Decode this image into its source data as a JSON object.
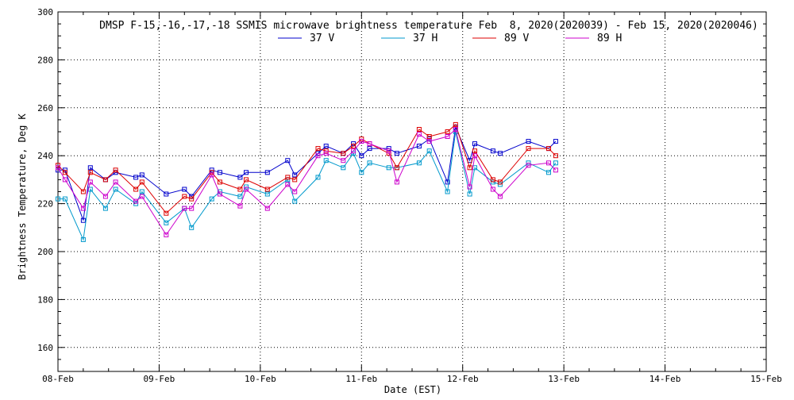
{
  "chart_data": {
    "type": "line",
    "title": "DMSP F-15,-16,-17,-18 SSMIS microwave brightness temperature Feb  8, 2020(2020039) - Feb 15, 2020(2020046)",
    "xlabel": "Date (EST)",
    "ylabel": "Brightness Temperature, Deg K",
    "xlim": [
      0,
      7
    ],
    "ylim": [
      150,
      300
    ],
    "x_ticks": [
      {
        "value": 0,
        "label": "08-Feb"
      },
      {
        "value": 1,
        "label": "09-Feb"
      },
      {
        "value": 2,
        "label": "10-Feb"
      },
      {
        "value": 3,
        "label": "11-Feb"
      },
      {
        "value": 4,
        "label": "12-Feb"
      },
      {
        "value": 5,
        "label": "13-Feb"
      },
      {
        "value": 6,
        "label": "14-Feb"
      },
      {
        "value": 7,
        "label": "15-Feb"
      }
    ],
    "y_ticks": [
      160,
      180,
      200,
      220,
      240,
      260,
      280,
      300
    ],
    "grid": true,
    "legend_position": "top",
    "series": [
      {
        "name": "37 V",
        "color": "#0000cc",
        "points": [
          [
            0.0,
            234
          ],
          [
            0.07,
            234
          ],
          [
            0.25,
            213
          ],
          [
            0.32,
            235
          ],
          [
            0.47,
            230
          ],
          [
            0.57,
            233
          ],
          [
            0.77,
            231
          ],
          [
            0.83,
            232
          ],
          [
            1.07,
            224
          ],
          [
            1.25,
            226
          ],
          [
            1.32,
            223
          ],
          [
            1.52,
            234
          ],
          [
            1.6,
            233
          ],
          [
            1.8,
            231
          ],
          [
            1.86,
            233
          ],
          [
            2.07,
            233
          ],
          [
            2.27,
            238
          ],
          [
            2.34,
            232
          ],
          [
            2.57,
            241
          ],
          [
            2.65,
            244
          ],
          [
            2.82,
            241
          ],
          [
            2.92,
            245
          ],
          [
            3.0,
            240
          ],
          [
            3.08,
            243
          ],
          [
            3.27,
            243
          ],
          [
            3.35,
            241
          ],
          [
            3.57,
            244
          ],
          [
            3.67,
            247
          ],
          [
            3.85,
            229
          ],
          [
            3.93,
            252
          ],
          [
            4.07,
            238
          ],
          [
            4.12,
            245
          ],
          [
            4.3,
            242
          ],
          [
            4.37,
            241
          ],
          [
            4.65,
            246
          ],
          [
            4.85,
            243
          ],
          [
            4.92,
            246
          ]
        ]
      },
      {
        "name": "37 H",
        "color": "#0099cc",
        "points": [
          [
            0.0,
            222
          ],
          [
            0.07,
            222
          ],
          [
            0.25,
            205
          ],
          [
            0.32,
            226
          ],
          [
            0.47,
            218
          ],
          [
            0.57,
            226
          ],
          [
            0.77,
            220
          ],
          [
            0.83,
            225
          ],
          [
            1.07,
            212
          ],
          [
            1.25,
            218
          ],
          [
            1.32,
            210
          ],
          [
            1.52,
            222
          ],
          [
            1.6,
            225
          ],
          [
            1.8,
            223
          ],
          [
            1.86,
            227
          ],
          [
            2.07,
            224
          ],
          [
            2.27,
            230
          ],
          [
            2.34,
            221
          ],
          [
            2.57,
            231
          ],
          [
            2.65,
            238
          ],
          [
            2.82,
            235
          ],
          [
            2.92,
            241
          ],
          [
            3.0,
            233
          ],
          [
            3.08,
            237
          ],
          [
            3.27,
            235
          ],
          [
            3.35,
            235
          ],
          [
            3.57,
            237
          ],
          [
            3.67,
            242
          ],
          [
            3.85,
            225
          ],
          [
            3.93,
            250
          ],
          [
            4.07,
            224
          ],
          [
            4.12,
            235
          ],
          [
            4.3,
            229
          ],
          [
            4.37,
            228
          ],
          [
            4.65,
            237
          ],
          [
            4.85,
            233
          ],
          [
            4.92,
            237
          ]
        ]
      },
      {
        "name": "89 V",
        "color": "#dd0000",
        "points": [
          [
            0.0,
            236
          ],
          [
            0.07,
            233
          ],
          [
            0.25,
            225
          ],
          [
            0.32,
            233
          ],
          [
            0.47,
            230
          ],
          [
            0.57,
            234
          ],
          [
            0.77,
            226
          ],
          [
            0.83,
            229
          ],
          [
            1.07,
            216
          ],
          [
            1.25,
            223
          ],
          [
            1.32,
            222
          ],
          [
            1.52,
            233
          ],
          [
            1.6,
            229
          ],
          [
            1.8,
            226
          ],
          [
            1.86,
            230
          ],
          [
            2.07,
            226
          ],
          [
            2.27,
            231
          ],
          [
            2.34,
            230
          ],
          [
            2.57,
            243
          ],
          [
            2.65,
            242
          ],
          [
            2.82,
            241
          ],
          [
            2.92,
            244
          ],
          [
            3.0,
            247
          ],
          [
            3.08,
            245
          ],
          [
            3.27,
            241
          ],
          [
            3.35,
            235
          ],
          [
            3.57,
            251
          ],
          [
            3.67,
            248
          ],
          [
            3.85,
            250
          ],
          [
            3.93,
            253
          ],
          [
            4.07,
            235
          ],
          [
            4.12,
            242
          ],
          [
            4.3,
            230
          ],
          [
            4.37,
            229
          ],
          [
            4.65,
            243
          ],
          [
            4.85,
            243
          ],
          [
            4.92,
            240
          ]
        ]
      },
      {
        "name": "89 H",
        "color": "#cc00cc",
        "points": [
          [
            0.0,
            235
          ],
          [
            0.07,
            230
          ],
          [
            0.25,
            218
          ],
          [
            0.32,
            229
          ],
          [
            0.47,
            223
          ],
          [
            0.57,
            229
          ],
          [
            0.77,
            221
          ],
          [
            0.83,
            223
          ],
          [
            1.07,
            207
          ],
          [
            1.25,
            218
          ],
          [
            1.32,
            218
          ],
          [
            1.52,
            232
          ],
          [
            1.6,
            224
          ],
          [
            1.8,
            219
          ],
          [
            1.86,
            226
          ],
          [
            2.07,
            218
          ],
          [
            2.27,
            228
          ],
          [
            2.34,
            225
          ],
          [
            2.57,
            240
          ],
          [
            2.65,
            241
          ],
          [
            2.82,
            238
          ],
          [
            2.92,
            242
          ],
          [
            3.0,
            246
          ],
          [
            3.08,
            245
          ],
          [
            3.27,
            242
          ],
          [
            3.35,
            229
          ],
          [
            3.57,
            249
          ],
          [
            3.67,
            246
          ],
          [
            3.85,
            248
          ],
          [
            3.93,
            251
          ],
          [
            4.07,
            227
          ],
          [
            4.12,
            240
          ],
          [
            4.3,
            226
          ],
          [
            4.37,
            223
          ],
          [
            4.65,
            236
          ],
          [
            4.85,
            237
          ],
          [
            4.92,
            234
          ]
        ]
      }
    ]
  }
}
